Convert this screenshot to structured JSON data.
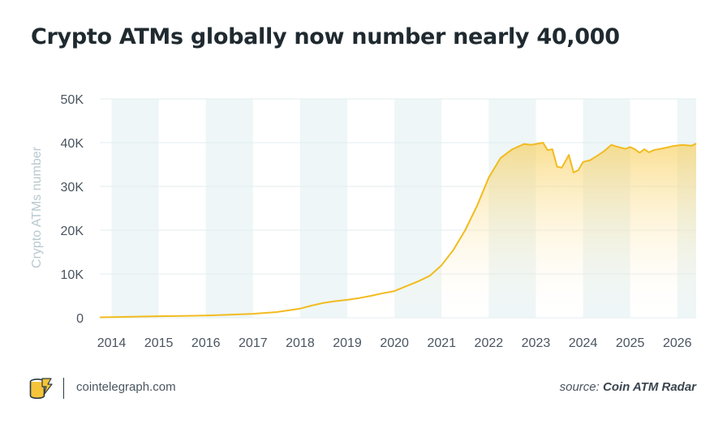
{
  "header": {
    "title": "Crypto ATMs globally now number nearly 40,000"
  },
  "footer": {
    "site": "cointelegraph.com",
    "source_label": "source:",
    "source_name": "Coin ATM Radar"
  },
  "colors": {
    "line": "#f2bb1f",
    "fill_top": "#f7c948",
    "band": "#eef6f7",
    "axis_text": "#4a5560",
    "ylabel_text": "#b9c9cf",
    "grid": "#e3ecef"
  },
  "chart_data": {
    "type": "area",
    "title": "Crypto ATMs globally now number nearly 40,000",
    "xlabel": "",
    "ylabel": "Crypto ATMs number",
    "xlim": [
      2013.75,
      2026.4
    ],
    "ylim": [
      0,
      50000
    ],
    "x_ticks": [
      "2014",
      "2015",
      "2016",
      "2017",
      "2018",
      "2019",
      "2020",
      "2021",
      "2022",
      "2023",
      "2024",
      "2025",
      "2026"
    ],
    "y_ticks": [
      "0",
      "10K",
      "20K",
      "30K",
      "40K",
      "50K"
    ],
    "y_tick_values": [
      0,
      10000,
      20000,
      30000,
      40000,
      50000
    ],
    "grid": true,
    "shaded_years": [
      2014,
      2016,
      2018,
      2020,
      2022,
      2024,
      2026
    ],
    "series": [
      {
        "name": "Crypto ATMs",
        "x": [
          2013.75,
          2014.0,
          2014.5,
          2015.0,
          2015.5,
          2016.0,
          2016.5,
          2017.0,
          2017.5,
          2018.0,
          2018.25,
          2018.5,
          2018.75,
          2019.0,
          2019.25,
          2019.5,
          2019.75,
          2020.0,
          2020.25,
          2020.5,
          2020.75,
          2021.0,
          2021.25,
          2021.5,
          2021.75,
          2022.0,
          2022.25,
          2022.5,
          2022.75,
          2022.9,
          2023.0,
          2023.15,
          2023.25,
          2023.35,
          2023.45,
          2023.55,
          2023.7,
          2023.8,
          2023.9,
          2024.0,
          2024.15,
          2024.3,
          2024.45,
          2024.6,
          2024.75,
          2024.9,
          2025.0,
          2025.1,
          2025.2,
          2025.3,
          2025.4,
          2025.5,
          2025.7,
          2025.9,
          2026.1,
          2026.3,
          2026.4
        ],
        "values": [
          100,
          150,
          250,
          350,
          420,
          520,
          700,
          900,
          1300,
          2100,
          2800,
          3400,
          3800,
          4100,
          4500,
          5000,
          5600,
          6100,
          7200,
          8300,
          9600,
          12000,
          15500,
          20000,
          25500,
          32000,
          36500,
          38500,
          39700,
          39500,
          39700,
          40000,
          38300,
          38500,
          34500,
          34300,
          37200,
          33200,
          33700,
          35600,
          36000,
          37000,
          38100,
          39500,
          39000,
          38600,
          39000,
          38500,
          37700,
          38500,
          37800,
          38300,
          38700,
          39200,
          39500,
          39300,
          39800
        ]
      }
    ]
  }
}
